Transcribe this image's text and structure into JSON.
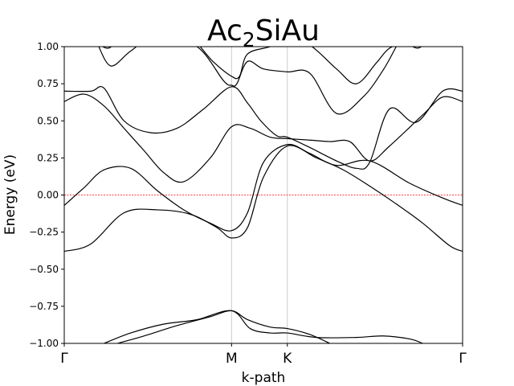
{
  "chart_data": {
    "type": "line",
    "title_base": "Ac",
    "title_sub": "2",
    "title_rest": "SiAu",
    "xlabel": "k-path",
    "ylabel": "Energy (eV)",
    "ylim": [
      -1.0,
      1.0
    ],
    "xlim": [
      0,
      3.0
    ],
    "yticks": [
      -1.0,
      -0.75,
      -0.5,
      -0.25,
      0.0,
      0.25,
      0.5,
      0.75,
      1.0
    ],
    "ytick_labels": [
      "−1.00",
      "−0.75",
      "−0.50",
      "−0.25",
      "0.00",
      "0.25",
      "0.50",
      "0.75",
      "1.00"
    ],
    "kpoints": [
      {
        "x": 0.0,
        "label": "Γ"
      },
      {
        "x": 1.26,
        "label": "M"
      },
      {
        "x": 1.68,
        "label": "K"
      },
      {
        "x": 3.0,
        "label": "Γ"
      }
    ],
    "fermi_level": 0.0,
    "fermi_color": "#ff0000",
    "band_color": "#000000",
    "vline_color": "#cccccc",
    "series": [
      {
        "x": [
          0.0,
          0.2,
          0.45,
          0.7,
          0.95,
          1.15,
          1.26,
          1.38,
          1.5,
          1.68,
          1.9,
          2.1,
          2.3,
          2.5,
          2.7,
          2.9,
          3.0
        ],
        "values": [
          -0.38,
          -0.33,
          -0.12,
          -0.1,
          -0.13,
          -0.22,
          -0.29,
          -0.22,
          0.12,
          0.33,
          0.25,
          0.17,
          0.06,
          -0.06,
          -0.19,
          -0.34,
          -0.38
        ]
      },
      {
        "x": [
          0.0,
          0.15,
          0.3,
          0.5,
          0.7,
          0.9,
          1.1,
          1.26,
          1.38,
          1.5,
          1.68,
          1.85,
          2.05,
          2.3,
          2.6,
          2.85,
          3.0
        ],
        "values": [
          -0.07,
          0.05,
          0.17,
          0.18,
          0.03,
          -0.1,
          -0.19,
          -0.24,
          -0.12,
          0.22,
          0.34,
          0.28,
          0.2,
          0.23,
          0.08,
          -0.02,
          -0.07
        ]
      },
      {
        "x": [
          0.0,
          0.15,
          0.3,
          0.45,
          0.6,
          0.75,
          0.9,
          1.1,
          1.26,
          1.4,
          1.55,
          1.68,
          1.85,
          2.0,
          2.15,
          2.3,
          2.45,
          2.7,
          2.85,
          3.0
        ],
        "values": [
          0.63,
          0.68,
          0.6,
          0.45,
          0.3,
          0.15,
          0.09,
          0.25,
          0.46,
          0.45,
          0.39,
          0.38,
          0.37,
          0.36,
          0.36,
          0.23,
          0.33,
          0.54,
          0.66,
          0.63
        ]
      },
      {
        "x": [
          0.0,
          0.2,
          0.3,
          0.45,
          0.65,
          0.85,
          1.05,
          1.26,
          1.38,
          1.48,
          1.6,
          1.68,
          1.85,
          2.05,
          2.2,
          2.3,
          2.45,
          2.65,
          2.85,
          3.0
        ],
        "values": [
          0.7,
          0.7,
          0.72,
          0.5,
          0.42,
          0.45,
          0.58,
          0.73,
          0.62,
          0.5,
          0.4,
          0.39,
          0.32,
          0.23,
          0.18,
          0.22,
          0.58,
          0.49,
          0.7,
          0.7
        ]
      },
      {
        "x": [
          0.25,
          0.35,
          0.5,
          0.7,
          1.0,
          1.2,
          1.26,
          1.3,
          1.38,
          1.5,
          1.68,
          1.85,
          2.05,
          2.25,
          2.4,
          2.5
        ],
        "values": [
          1.02,
          0.87,
          0.97,
          1.08,
          1.0,
          0.77,
          0.74,
          0.75,
          0.9,
          0.85,
          0.83,
          0.82,
          0.55,
          0.66,
          0.84,
          1.0
        ]
      },
      {
        "x": [
          0.2,
          0.32,
          0.4,
          0.6,
          0.9,
          1.12,
          1.26,
          1.32,
          1.38,
          1.55,
          1.68,
          1.85,
          2.05,
          2.2,
          2.35,
          2.45,
          2.6
        ],
        "values": [
          1.05,
          0.99,
          1.03,
          1.12,
          1.1,
          0.9,
          0.8,
          0.8,
          0.95,
          1.0,
          1.05,
          1.01,
          0.85,
          0.75,
          0.89,
          0.99,
          1.04
        ]
      },
      {
        "x": [
          2.58,
          2.66,
          2.72
        ],
        "values": [
          1.02,
          0.99,
          1.02
        ]
      },
      {
        "x": [
          0.3,
          0.5,
          0.75,
          1.0,
          1.26,
          1.4,
          1.55,
          1.68,
          1.9,
          2.2,
          2.4,
          2.6,
          2.7
        ],
        "values": [
          -1.0,
          -0.93,
          -0.87,
          -0.84,
          -0.78,
          -0.9,
          -0.93,
          -0.93,
          -0.96,
          -0.96,
          -0.95,
          -0.97,
          -1.0
        ]
      },
      {
        "x": [
          0.4,
          0.6,
          0.85,
          1.1,
          1.26,
          1.38,
          1.55,
          1.68,
          1.85,
          2.0
        ],
        "values": [
          -1.0,
          -0.95,
          -0.88,
          -0.82,
          -0.78,
          -0.84,
          -0.89,
          -0.9,
          -0.94,
          -1.0
        ]
      }
    ]
  }
}
